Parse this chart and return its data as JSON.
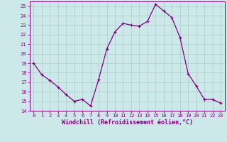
{
  "x": [
    0,
    1,
    2,
    3,
    4,
    5,
    6,
    7,
    8,
    9,
    10,
    11,
    12,
    13,
    14,
    15,
    16,
    17,
    18,
    19,
    20,
    21,
    22,
    23
  ],
  "y": [
    19.0,
    17.8,
    17.2,
    16.5,
    15.7,
    15.0,
    15.2,
    14.5,
    17.3,
    20.5,
    22.3,
    23.2,
    23.0,
    22.9,
    23.4,
    25.2,
    24.5,
    23.8,
    21.7,
    17.9,
    16.6,
    15.2,
    15.2,
    14.8
  ],
  "line_color": "#800080",
  "marker": "+",
  "bg_color": "#cce8e8",
  "grid_color": "#aacccc",
  "xlabel": "Windchill (Refroidissement éolien,°C)",
  "xlabel_color": "#800080",
  "tick_color": "#800080",
  "spine_color": "#800080",
  "ylim": [
    14,
    25.5
  ],
  "xlim": [
    -0.5,
    23.5
  ],
  "yticks": [
    14,
    15,
    16,
    17,
    18,
    19,
    20,
    21,
    22,
    23,
    24,
    25
  ],
  "xticks": [
    0,
    1,
    2,
    3,
    4,
    5,
    6,
    7,
    8,
    9,
    10,
    11,
    12,
    13,
    14,
    15,
    16,
    17,
    18,
    19,
    20,
    21,
    22,
    23
  ],
  "font_family": "monospace",
  "tick_fontsize": 5.0,
  "xlabel_fontsize": 6.0
}
